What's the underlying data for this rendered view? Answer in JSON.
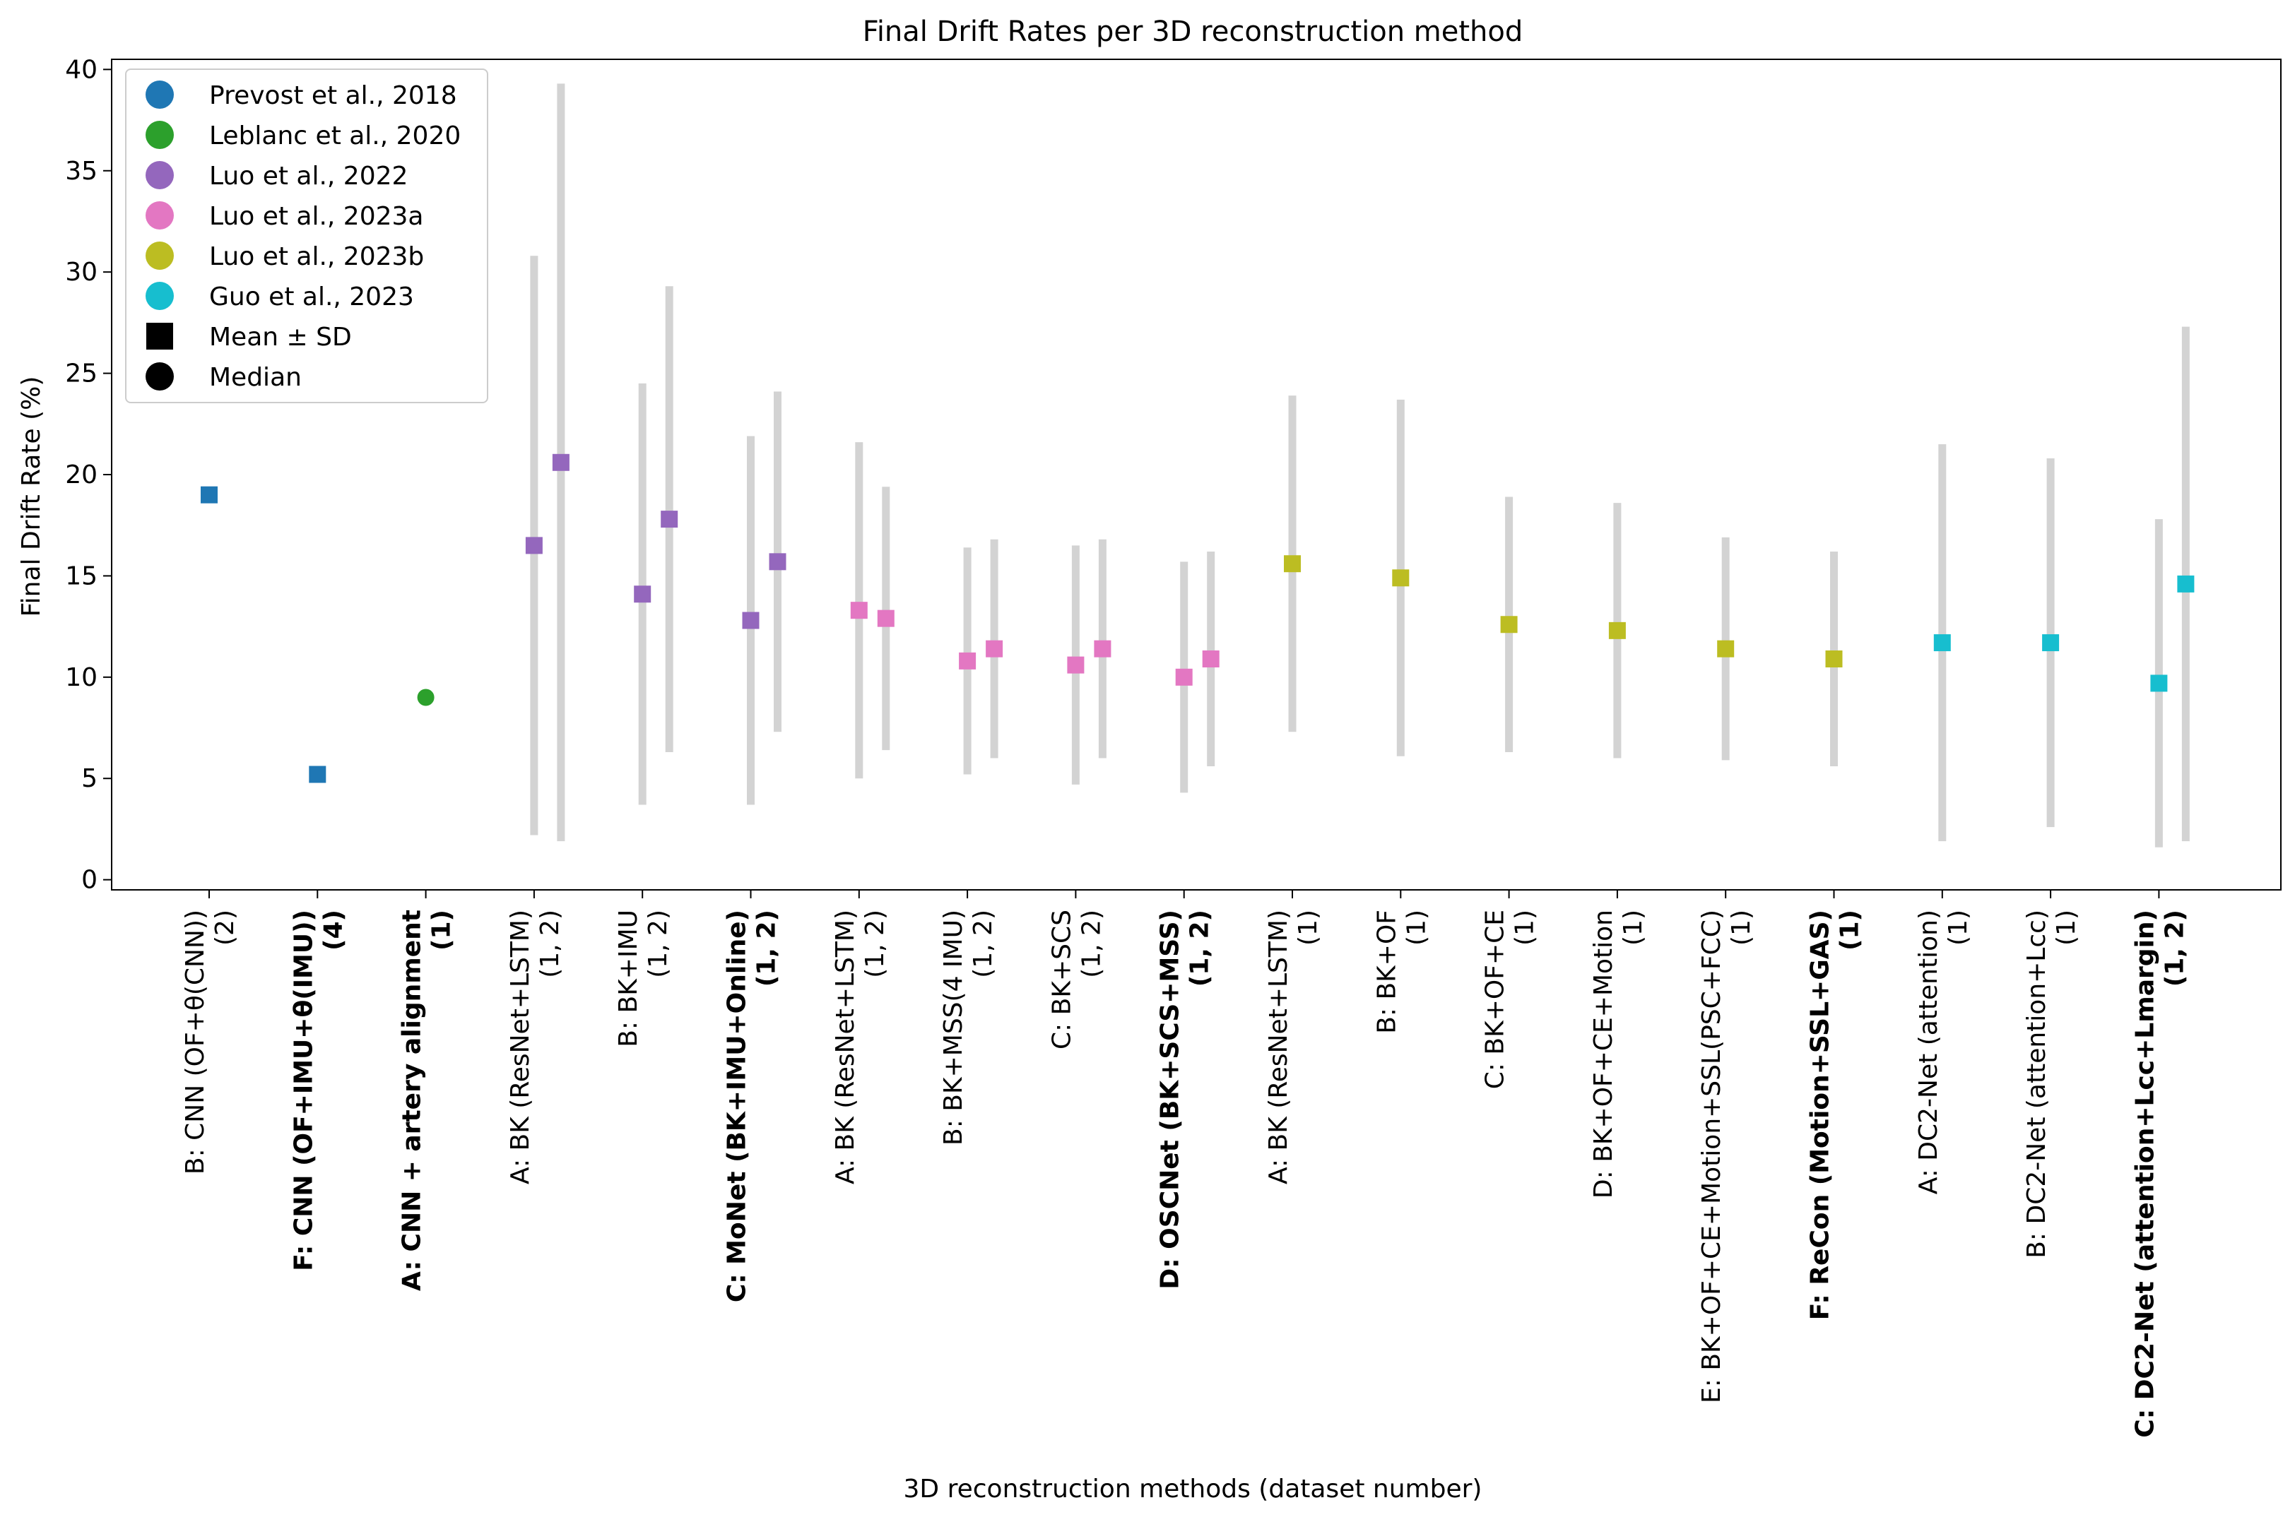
{
  "chart_data": {
    "type": "scatter",
    "title": "Final Drift Rates per 3D reconstruction method",
    "xlabel": "3D reconstruction methods (dataset number)",
    "ylabel": "Final Drift Rate (%)",
    "ylim": [
      -0.5,
      40.5
    ],
    "yticks": [
      0,
      5,
      10,
      15,
      20,
      25,
      30,
      35,
      40
    ],
    "grid": false,
    "legend_position": "top-left",
    "categories": [
      {
        "method": "B: CNN (OF+θ(CNN))",
        "datasets": "(2)",
        "bold": false
      },
      {
        "method": "F: CNN (OF+IMU+θ(IMU))",
        "datasets": "(4)",
        "bold": true
      },
      {
        "method": "A: CNN + artery alignment",
        "datasets": "(1)",
        "bold": true
      },
      {
        "method": "A: BK (ResNet+LSTM)",
        "datasets": "(1, 2)",
        "bold": false
      },
      {
        "method": "B: BK+IMU",
        "datasets": "(1, 2)",
        "bold": false
      },
      {
        "method": "C: MoNet (BK+IMU+Online)",
        "datasets": "(1, 2)",
        "bold": true
      },
      {
        "method": "A: BK (ResNet+LSTM)",
        "datasets": "(1, 2)",
        "bold": false
      },
      {
        "method": "B: BK+MSS(4 IMU)",
        "datasets": "(1, 2)",
        "bold": false
      },
      {
        "method": "C: BK+SCS",
        "datasets": "(1, 2)",
        "bold": false
      },
      {
        "method": "D: OSCNet (BK+SCS+MSS)",
        "datasets": "(1, 2)",
        "bold": true
      },
      {
        "method": "A: BK (ResNet+LSTM)",
        "datasets": "(1)",
        "bold": false
      },
      {
        "method": "B: BK+OF",
        "datasets": "(1)",
        "bold": false
      },
      {
        "method": "C: BK+OF+CE",
        "datasets": "(1)",
        "bold": false
      },
      {
        "method": "D: BK+OF+CE+Motion",
        "datasets": "(1)",
        "bold": false
      },
      {
        "method": "E: BK+OF+CE+Motion+SSL(PSC+FCC)",
        "datasets": "(1)",
        "bold": false
      },
      {
        "method": "F: ReCon (Motion+SSL+GAS)",
        "datasets": "(1)",
        "bold": true
      },
      {
        "method": "A: DC2-Net (attention)",
        "datasets": "(1)",
        "bold": false
      },
      {
        "method": "B: DC2-Net (attention+Lcc)",
        "datasets": "(1)",
        "bold": false
      },
      {
        "method": "C: DC2-Net (attention+Lcc+Lmargin)",
        "datasets": "(1, 2)",
        "bold": true
      }
    ],
    "series": [
      {
        "name": "Prevost et al., 2018",
        "color": "#1f77b4",
        "points": [
          {
            "x": 0,
            "offset": 0,
            "marker": "square",
            "value": 19.0
          },
          {
            "x": 1,
            "offset": 0,
            "marker": "square",
            "value": 5.2
          }
        ]
      },
      {
        "name": "Leblanc et al., 2020",
        "color": "#2ca02c",
        "points": [
          {
            "x": 2,
            "offset": 0,
            "marker": "circle",
            "value": 9.0
          }
        ]
      },
      {
        "name": "Luo et al., 2022",
        "color": "#9467bd",
        "points": [
          {
            "x": 3,
            "offset": 0,
            "marker": "square",
            "value": 16.5,
            "sd": 14.3
          },
          {
            "x": 3,
            "offset": 1,
            "marker": "square",
            "value": 20.6,
            "sd": 18.7
          },
          {
            "x": 4,
            "offset": 0,
            "marker": "square",
            "value": 14.1,
            "sd": 10.4
          },
          {
            "x": 4,
            "offset": 1,
            "marker": "square",
            "value": 17.8,
            "sd": 11.5
          },
          {
            "x": 5,
            "offset": 0,
            "marker": "square",
            "value": 12.8,
            "sd": 9.1
          },
          {
            "x": 5,
            "offset": 1,
            "marker": "square",
            "value": 15.7,
            "sd": 8.4
          }
        ]
      },
      {
        "name": "Luo et al., 2023a",
        "color": "#e377c2",
        "points": [
          {
            "x": 6,
            "offset": 0,
            "marker": "square",
            "value": 13.3,
            "sd": 8.3
          },
          {
            "x": 6,
            "offset": 1,
            "marker": "square",
            "value": 12.9,
            "sd": 6.5
          },
          {
            "x": 7,
            "offset": 0,
            "marker": "square",
            "value": 10.8,
            "sd": 5.6
          },
          {
            "x": 7,
            "offset": 1,
            "marker": "square",
            "value": 11.4,
            "sd": 5.4
          },
          {
            "x": 8,
            "offset": 0,
            "marker": "square",
            "value": 10.6,
            "sd": 5.9
          },
          {
            "x": 8,
            "offset": 1,
            "marker": "square",
            "value": 11.4,
            "sd": 5.4
          },
          {
            "x": 9,
            "offset": 0,
            "marker": "square",
            "value": 10.0,
            "sd": 5.7
          },
          {
            "x": 9,
            "offset": 1,
            "marker": "square",
            "value": 10.9,
            "sd": 5.3
          }
        ]
      },
      {
        "name": "Luo et al., 2023b",
        "color": "#bcbd22",
        "points": [
          {
            "x": 10,
            "offset": 0,
            "marker": "square",
            "value": 15.6,
            "sd": 8.3
          },
          {
            "x": 11,
            "offset": 0,
            "marker": "square",
            "value": 14.9,
            "sd": 8.8
          },
          {
            "x": 12,
            "offset": 0,
            "marker": "square",
            "value": 12.6,
            "sd": 6.3
          },
          {
            "x": 13,
            "offset": 0,
            "marker": "square",
            "value": 12.3,
            "sd": 6.3
          },
          {
            "x": 14,
            "offset": 0,
            "marker": "square",
            "value": 11.4,
            "sd": 5.5
          },
          {
            "x": 15,
            "offset": 0,
            "marker": "square",
            "value": 10.9,
            "sd": 5.3
          }
        ]
      },
      {
        "name": "Guo et al., 2023",
        "color": "#17becf",
        "points": [
          {
            "x": 16,
            "offset": 0,
            "marker": "square",
            "value": 11.7,
            "sd": 9.8
          },
          {
            "x": 17,
            "offset": 0,
            "marker": "square",
            "value": 11.7,
            "sd": 9.1
          },
          {
            "x": 18,
            "offset": 0,
            "marker": "square",
            "value": 9.7,
            "sd": 8.1
          },
          {
            "x": 18,
            "offset": 1,
            "marker": "square",
            "value": 14.6,
            "sd": 12.7
          }
        ]
      }
    ],
    "legend": [
      {
        "label": "Prevost et al., 2018",
        "marker": "circle",
        "color": "#1f77b4"
      },
      {
        "label": "Leblanc et al., 2020",
        "marker": "circle",
        "color": "#2ca02c"
      },
      {
        "label": "Luo et al., 2022",
        "marker": "circle",
        "color": "#9467bd"
      },
      {
        "label": "Luo et al., 2023a",
        "marker": "circle",
        "color": "#e377c2"
      },
      {
        "label": "Luo et al., 2023b",
        "marker": "circle",
        "color": "#bcbd22"
      },
      {
        "label": "Guo et al., 2023",
        "marker": "circle",
        "color": "#17becf"
      },
      {
        "label": "Mean ± SD",
        "marker": "square",
        "color": "#000000"
      },
      {
        "label": "Median",
        "marker": "circle",
        "color": "#000000"
      }
    ],
    "errorbar_color": "#d3d3d3"
  }
}
